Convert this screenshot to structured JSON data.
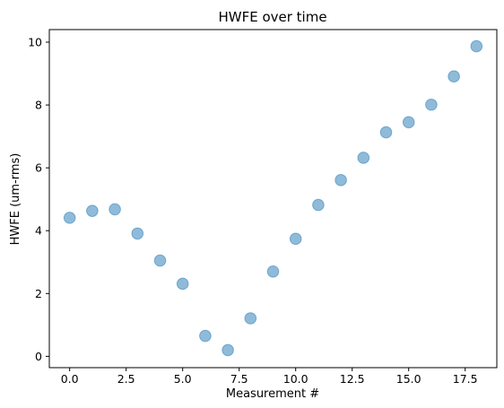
{
  "chart_data": {
    "type": "scatter",
    "title": "HWFE over time",
    "xlabel": "Measurement #",
    "ylabel": "HWFE (um-rms)",
    "xlim": [
      -0.9,
      18.9
    ],
    "ylim": [
      -0.36,
      10.4
    ],
    "x_ticks": [
      0.0,
      2.5,
      5.0,
      7.5,
      10.0,
      12.5,
      15.0,
      17.5
    ],
    "x_tick_labels": [
      "0.0",
      "2.5",
      "5.0",
      "7.5",
      "10.0",
      "12.5",
      "15.0",
      "17.5"
    ],
    "y_ticks": [
      0,
      2,
      4,
      6,
      8,
      10
    ],
    "y_tick_labels": [
      "0",
      "2",
      "4",
      "6",
      "8",
      "10"
    ],
    "grid": false,
    "marker_color": "#1f77b4",
    "marker_alpha": 0.5,
    "x": [
      0,
      1,
      2,
      3,
      4,
      5,
      6,
      7,
      8,
      9,
      10,
      11,
      12,
      13,
      14,
      15,
      16,
      17,
      18
    ],
    "y": [
      4.41,
      4.63,
      4.68,
      3.91,
      3.05,
      2.31,
      0.65,
      0.2,
      1.21,
      2.7,
      3.74,
      4.82,
      5.61,
      6.32,
      7.13,
      7.45,
      8.01,
      8.91,
      9.87
    ]
  }
}
